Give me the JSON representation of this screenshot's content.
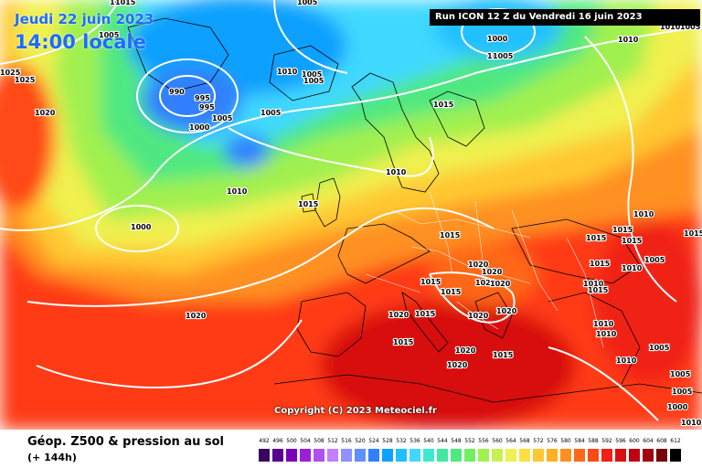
{
  "header": {
    "date": "Jeudi 22 juin 2023",
    "time": "14:00 locale",
    "run": "Run ICON 12 Z du Vendredi 16 juin 2023"
  },
  "copyright": "Copyright (C) 2023 Meteociel.fr",
  "footer": {
    "title": "Géop. Z500 & pression au sol",
    "subtitle": "(+ 144h)"
  },
  "legend": {
    "values": [
      "492",
      "496",
      "500",
      "504",
      "508",
      "512",
      "516",
      "520",
      "524",
      "528",
      "532",
      "536",
      "540",
      "544",
      "548",
      "552",
      "556",
      "560",
      "564",
      "568",
      "572",
      "576",
      "580",
      "584",
      "588",
      "592",
      "596",
      "600",
      "604",
      "608",
      "612"
    ],
    "colors": [
      "#3b0060",
      "#5a0090",
      "#7a00b8",
      "#9a20d8",
      "#b050f0",
      "#c080ff",
      "#9090ff",
      "#6090ff",
      "#3080ff",
      "#10a0ff",
      "#20c0ff",
      "#40d8ff",
      "#40e8d0",
      "#40e8a0",
      "#50e880",
      "#70f060",
      "#a0f050",
      "#c8f050",
      "#f0f050",
      "#ffe040",
      "#ffc830",
      "#ffb020",
      "#ff9020",
      "#ff6818",
      "#ff4818",
      "#f02018",
      "#d81010",
      "#c00010",
      "#a00010",
      "#780008",
      "#000000"
    ]
  },
  "isobar_labels": [
    "1005",
    "1025",
    "1025",
    "1020",
    "1010",
    "1015",
    "1005",
    "990",
    "995",
    "995",
    "1000",
    "1005",
    "1010",
    "1005",
    "1005",
    "1005",
    "1010",
    "1000",
    "1015",
    "1000",
    "1010",
    "1000",
    "1005",
    "1010",
    "1005",
    "1015",
    "1010",
    "1015",
    "1010",
    "1015",
    "1015",
    "1015",
    "1015",
    "1010",
    "1005",
    "1015",
    "1020",
    "1020",
    "1020",
    "1020",
    "1020",
    "1020",
    "1020",
    "1015",
    "1015",
    "1010",
    "1015",
    "1010",
    "1010",
    "1005",
    "1010",
    "1005",
    "1020",
    "1015",
    "1015",
    "1020",
    "1020",
    "1015",
    "1005",
    "1000",
    "1010"
  ]
}
